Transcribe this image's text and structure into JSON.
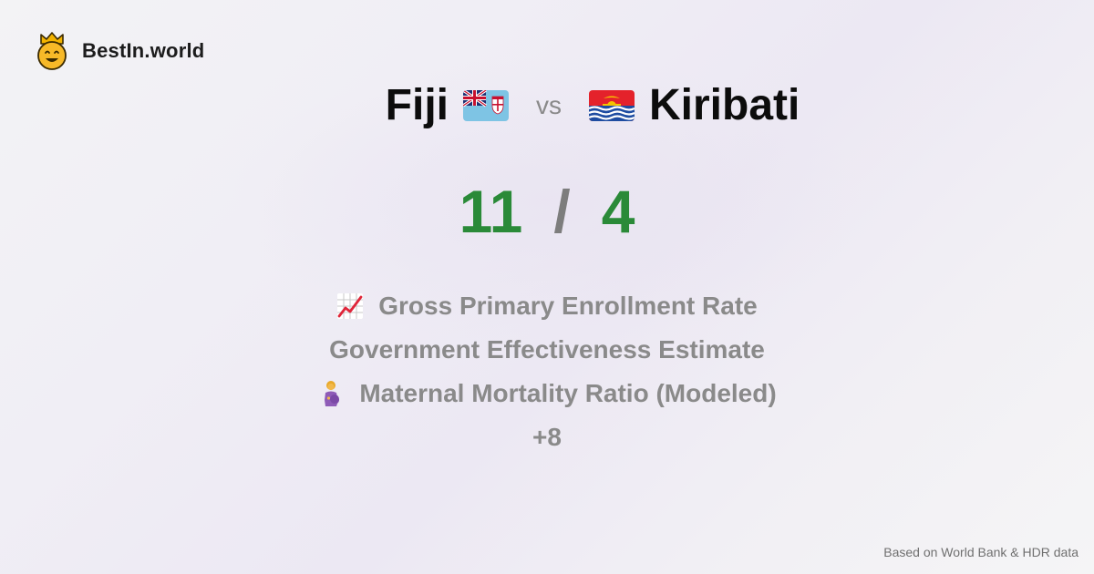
{
  "brand": {
    "name": "BestIn.world",
    "logo_icon": "crowned-smiley-icon"
  },
  "comparison": {
    "left_country": "Fiji",
    "left_flag": "fiji-flag-icon",
    "separator": "vs",
    "right_country": "Kiribati",
    "right_flag": "kiribati-flag-icon"
  },
  "score": {
    "left": "11",
    "separator": "/",
    "right": "4",
    "color": "#2a8a38"
  },
  "metrics": [
    {
      "label": "Gross Primary Enrollment Rate",
      "icon": "chart-increasing-icon"
    },
    {
      "label": "Government Effectiveness Estimate",
      "icon": ""
    },
    {
      "label": "Maternal Mortality Ratio (Modeled)",
      "icon": "pregnant-woman-icon"
    },
    {
      "label": "+8",
      "icon": ""
    }
  ],
  "footer": {
    "source": "Based on World Bank & HDR data"
  }
}
